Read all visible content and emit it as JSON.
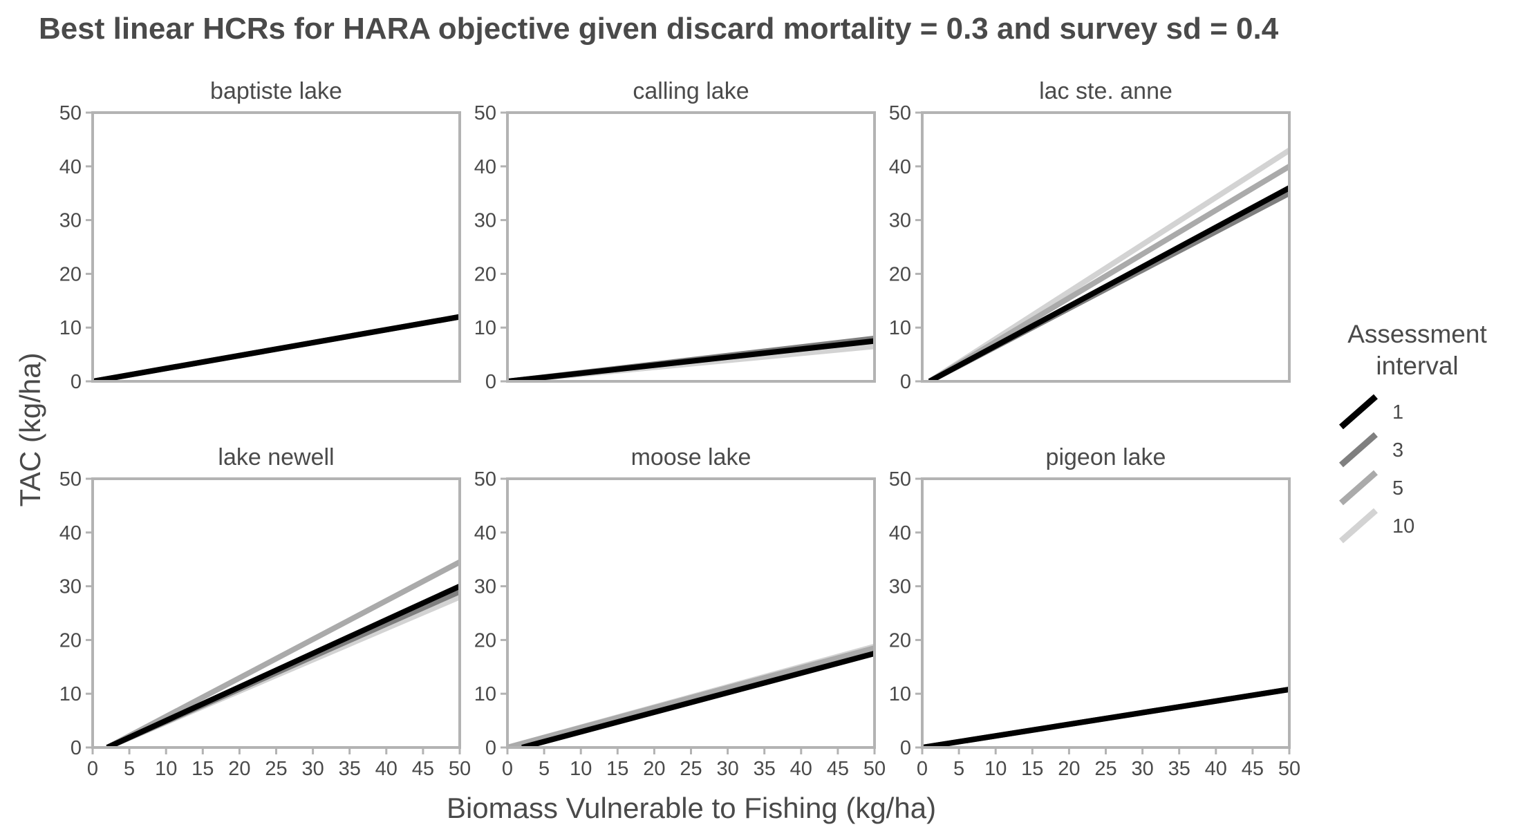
{
  "chart_data": {
    "type": "line",
    "title": "Best linear HCRs for HARA objective given discard mortality = 0.3 and survey sd = 0.4",
    "xlabel": "Biomass Vulnerable to Fishing (kg/ha)",
    "ylabel": "TAC (kg/ha)",
    "xlim": [
      0,
      50
    ],
    "ylim": [
      0,
      50
    ],
    "xticks": [
      0,
      5,
      10,
      15,
      20,
      25,
      30,
      35,
      40,
      45,
      50
    ],
    "yticks": [
      0,
      10,
      20,
      30,
      40,
      50
    ],
    "grid": false,
    "legend": {
      "title": "Assessment interval",
      "title_lines": [
        "Assessment",
        "interval"
      ],
      "placement": "right",
      "entries": [
        {
          "label": "1",
          "color": "#000000"
        },
        {
          "label": "3",
          "color": "#7f7f7f"
        },
        {
          "label": "5",
          "color": "#aaaaaa"
        },
        {
          "label": "10",
          "color": "#d3d3d3"
        }
      ]
    },
    "panels": [
      {
        "title": "baptiste lake",
        "series": [
          {
            "name": "1",
            "x": [
              0,
              50
            ],
            "y": [
              0,
              12
            ]
          },
          {
            "name": "3",
            "x": [
              0,
              50
            ],
            "y": [
              0,
              12
            ]
          },
          {
            "name": "5",
            "x": [
              0,
              50
            ],
            "y": [
              0,
              12
            ]
          },
          {
            "name": "10",
            "x": [
              0,
              50
            ],
            "y": [
              0,
              12
            ]
          }
        ]
      },
      {
        "title": "calling lake",
        "series": [
          {
            "name": "1",
            "x": [
              0,
              50
            ],
            "y": [
              0,
              7.5
            ]
          },
          {
            "name": "3",
            "x": [
              0,
              50
            ],
            "y": [
              0,
              8
            ]
          },
          {
            "name": "5",
            "x": [
              0,
              50
            ],
            "y": [
              0,
              7.5
            ]
          },
          {
            "name": "10",
            "x": [
              0,
              50
            ],
            "y": [
              0,
              6.5
            ]
          }
        ]
      },
      {
        "title": "lac ste. anne",
        "series": [
          {
            "name": "1",
            "x": [
              1,
              50
            ],
            "y": [
              0,
              36
            ]
          },
          {
            "name": "3",
            "x": [
              1,
              50
            ],
            "y": [
              0,
              35
            ]
          },
          {
            "name": "5",
            "x": [
              1,
              50
            ],
            "y": [
              0,
              40
            ]
          },
          {
            "name": "10",
            "x": [
              1,
              50
            ],
            "y": [
              0,
              43
            ]
          }
        ]
      },
      {
        "title": "lake newell",
        "series": [
          {
            "name": "1",
            "x": [
              2,
              50
            ],
            "y": [
              0,
              30
            ]
          },
          {
            "name": "3",
            "x": [
              2,
              50
            ],
            "y": [
              0,
              29
            ]
          },
          {
            "name": "5",
            "x": [
              2,
              50
            ],
            "y": [
              0,
              34.5
            ]
          },
          {
            "name": "10",
            "x": [
              2,
              50
            ],
            "y": [
              0,
              28
            ]
          }
        ]
      },
      {
        "title": "moose lake",
        "series": [
          {
            "name": "1",
            "x": [
              2,
              50
            ],
            "y": [
              0,
              17.5
            ]
          },
          {
            "name": "3",
            "x": [
              2,
              50
            ],
            "y": [
              0,
              17.5
            ]
          },
          {
            "name": "5",
            "x": [
              0,
              50
            ],
            "y": [
              0,
              18.5
            ]
          },
          {
            "name": "10",
            "x": [
              0,
              50
            ],
            "y": [
              0,
              18.8
            ]
          }
        ]
      },
      {
        "title": "pigeon lake",
        "series": [
          {
            "name": "1",
            "x": [
              0,
              50
            ],
            "y": [
              0,
              10.8
            ]
          },
          {
            "name": "3",
            "x": [
              0,
              50
            ],
            "y": [
              0,
              10.8
            ]
          },
          {
            "name": "5",
            "x": [
              0,
              50
            ],
            "y": [
              0,
              10.8
            ]
          },
          {
            "name": "10",
            "x": [
              0,
              50
            ],
            "y": [
              0,
              10.8
            ]
          }
        ]
      }
    ]
  }
}
